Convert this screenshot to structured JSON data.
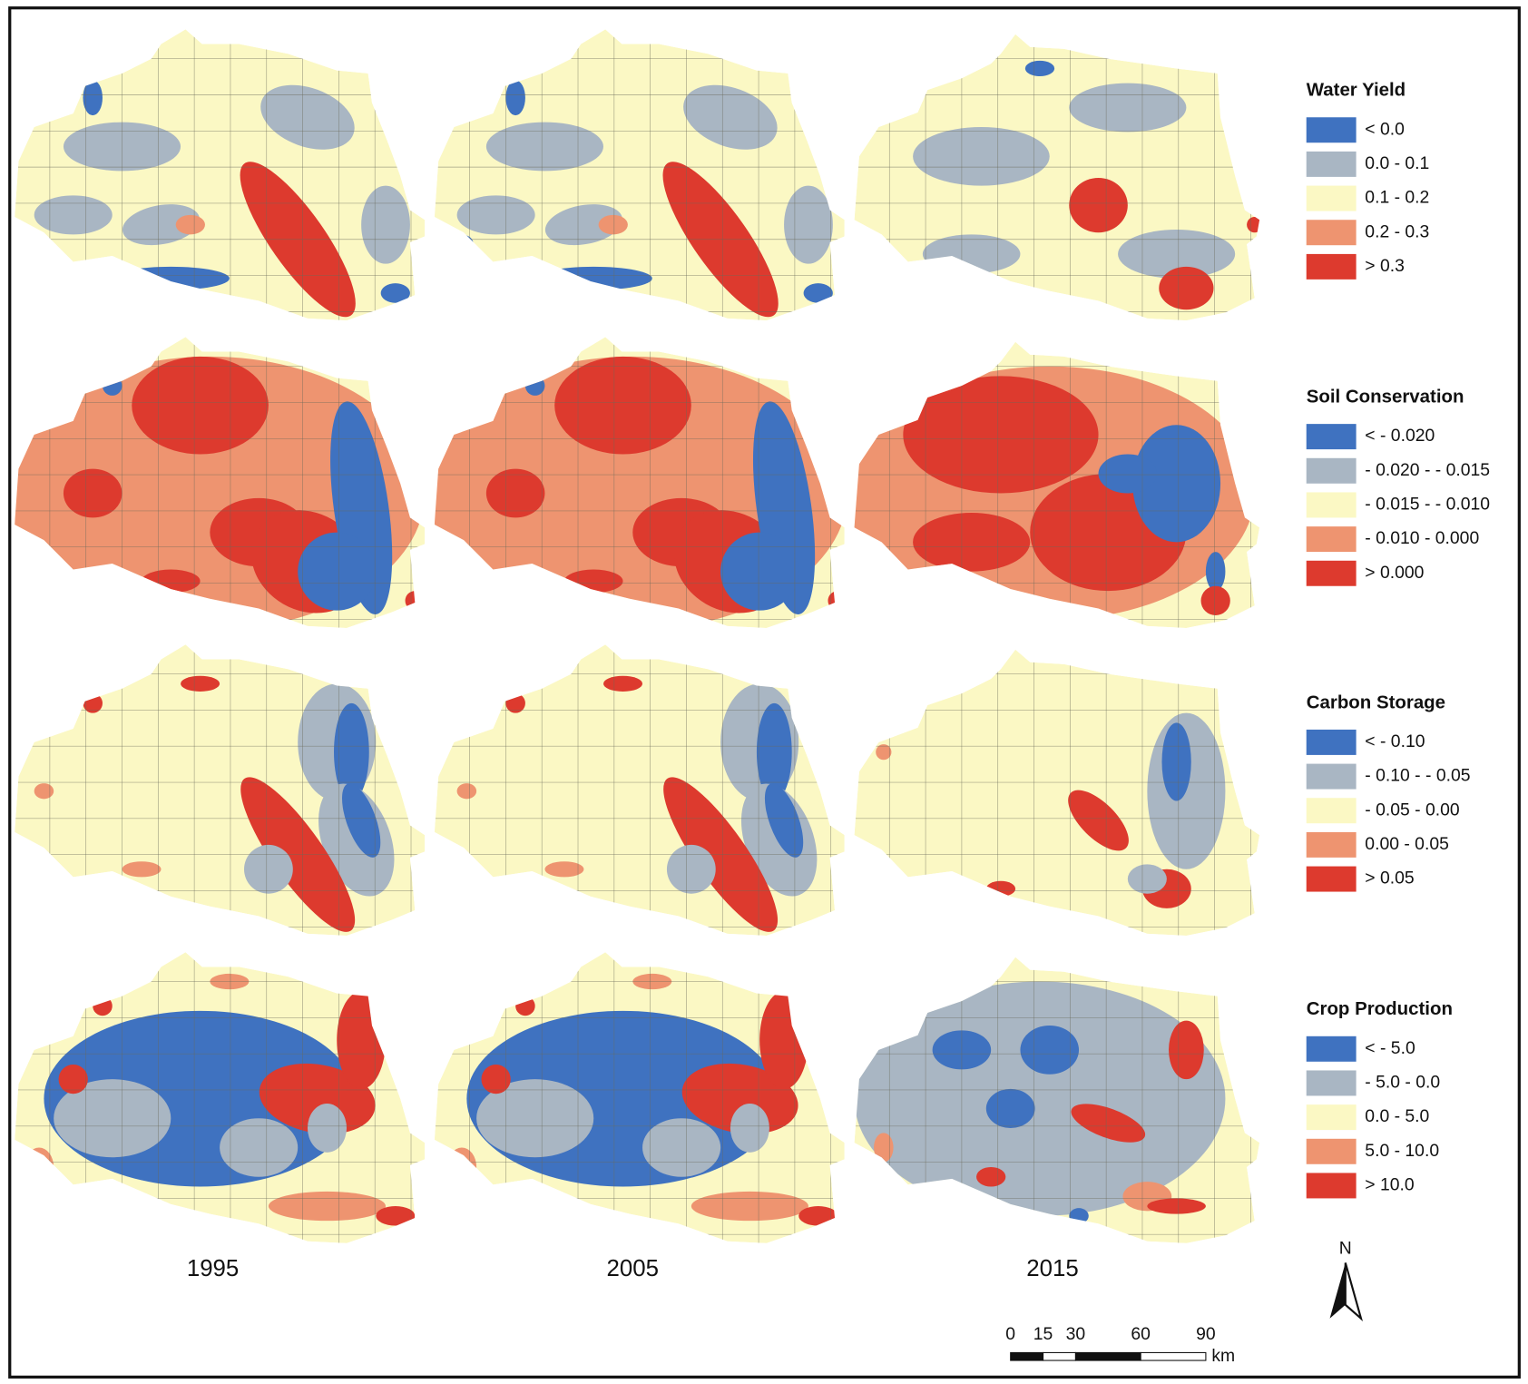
{
  "maps": [
    {
      "title": "Water Yield",
      "classes": [
        {
          "label": "< 0.0",
          "color": "#3f72c0"
        },
        {
          "label": "0.0 - 0.1",
          "color": "#a9b6c3"
        },
        {
          "label": "0.1 - 0.2",
          "color": "#fbf8c4"
        },
        {
          "label": "0.2 - 0.3",
          "color": "#ee9470"
        },
        {
          "label": "> 0.3",
          "color": "#dd3a2e"
        }
      ]
    },
    {
      "title": "Soil Conservation",
      "classes": [
        {
          "label": "< - 0.020",
          "color": "#3f72c0"
        },
        {
          "label": "- 0.020 - - 0.015",
          "color": "#a9b6c3"
        },
        {
          "label": "- 0.015 - - 0.010",
          "color": "#fbf8c4"
        },
        {
          "label": "- 0.010 - 0.000",
          "color": "#ee9470"
        },
        {
          "label": "> 0.000",
          "color": "#dd3a2e"
        }
      ]
    },
    {
      "title": "Carbon Storage",
      "classes": [
        {
          "label": "< - 0.10",
          "color": "#3f72c0"
        },
        {
          "label": "- 0.10 - - 0.05",
          "color": "#a9b6c3"
        },
        {
          "label": "- 0.05 - 0.00",
          "color": "#fbf8c4"
        },
        {
          "label": "0.00 - 0.05",
          "color": "#ee9470"
        },
        {
          "label": "> 0.05",
          "color": "#dd3a2e"
        }
      ]
    },
    {
      "title": "Crop Production",
      "classes": [
        {
          "label": "< - 5.0",
          "color": "#3f72c0"
        },
        {
          "label": "- 5.0 - 0.0",
          "color": "#a9b6c3"
        },
        {
          "label": "0.0 - 5.0",
          "color": "#fbf8c4"
        },
        {
          "label": "5.0 - 10.0",
          "color": "#ee9470"
        },
        {
          "label": "> 10.0",
          "color": "#dd3a2e"
        }
      ]
    }
  ],
  "years": [
    "1995",
    "2005",
    "2015"
  ],
  "north": "N",
  "scale_bar": {
    "ticks": [
      0,
      15,
      30,
      60,
      90
    ],
    "unit": "km"
  }
}
